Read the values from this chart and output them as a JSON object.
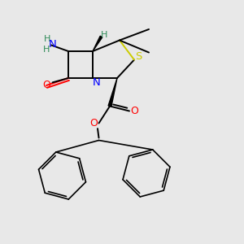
{
  "background_color": "#e8e8e8",
  "atom_colors": {
    "N": "#0000ff",
    "O": "#ff0000",
    "S": "#cccc00",
    "C": "#000000",
    "H": "#2e8b57"
  },
  "figsize": [
    3.0,
    3.0
  ],
  "dpi": 100
}
